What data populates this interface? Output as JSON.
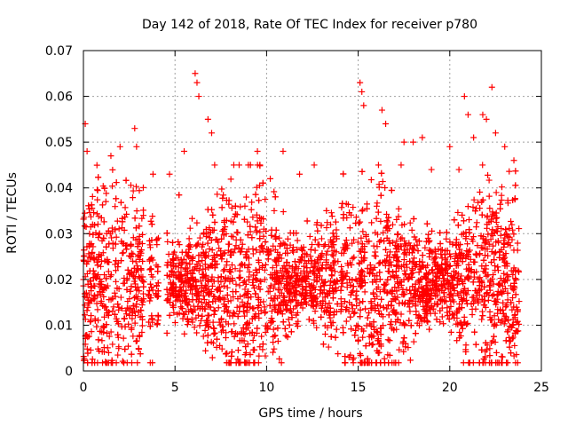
{
  "chart_data": {
    "type": "scatter",
    "title": "Day 142 of 2018, Rate Of TEC Index for receiver p780",
    "xlabel": "GPS time / hours",
    "ylabel": "ROTI / TECUs",
    "xlim": [
      0,
      25
    ],
    "ylim": [
      0,
      0.07
    ],
    "x_ticks": [
      "0",
      "5",
      "10",
      "15",
      "20",
      "25"
    ],
    "y_ticks": [
      "0",
      "0.01",
      "0.02",
      "0.03",
      "0.04",
      "0.05",
      "0.06",
      "0.07"
    ],
    "grid": true,
    "marker": "+",
    "color": "#ff0000",
    "data_range_x": [
      0.0,
      23.8
    ],
    "typical_y_range": [
      0.003,
      0.035
    ],
    "series": [
      {
        "points": [
          [
            0.1,
            0.054
          ],
          [
            0.2,
            0.048
          ],
          [
            0.5,
            0.032
          ],
          [
            1.2,
            0.002
          ],
          [
            1.5,
            0.047
          ],
          [
            2.0,
            0.049
          ],
          [
            2.8,
            0.053
          ],
          [
            2.9,
            0.049
          ],
          [
            3.8,
            0.043
          ],
          [
            4.7,
            0.043
          ],
          [
            5.5,
            0.048
          ],
          [
            6.1,
            0.065
          ],
          [
            6.2,
            0.063
          ],
          [
            6.3,
            0.06
          ],
          [
            6.8,
            0.055
          ],
          [
            7.0,
            0.052
          ],
          [
            8.5,
            0.045
          ],
          [
            9.5,
            0.048
          ],
          [
            10.2,
            0.042
          ],
          [
            10.9,
            0.048
          ],
          [
            11.8,
            0.043
          ],
          [
            12.6,
            0.045
          ],
          [
            14.5,
            0.003
          ],
          [
            15.1,
            0.063
          ],
          [
            15.2,
            0.061
          ],
          [
            15.3,
            0.058
          ],
          [
            16.3,
            0.057
          ],
          [
            16.5,
            0.054
          ],
          [
            17.5,
            0.05
          ],
          [
            18.0,
            0.05
          ],
          [
            18.5,
            0.051
          ],
          [
            19.0,
            0.044
          ],
          [
            20.0,
            0.049
          ],
          [
            20.5,
            0.044
          ],
          [
            20.8,
            0.06
          ],
          [
            21.0,
            0.056
          ],
          [
            21.3,
            0.051
          ],
          [
            21.8,
            0.056
          ],
          [
            22.0,
            0.055
          ],
          [
            22.3,
            0.062
          ],
          [
            22.5,
            0.052
          ],
          [
            23.0,
            0.049
          ],
          [
            23.5,
            0.046
          ]
        ]
      }
    ]
  }
}
